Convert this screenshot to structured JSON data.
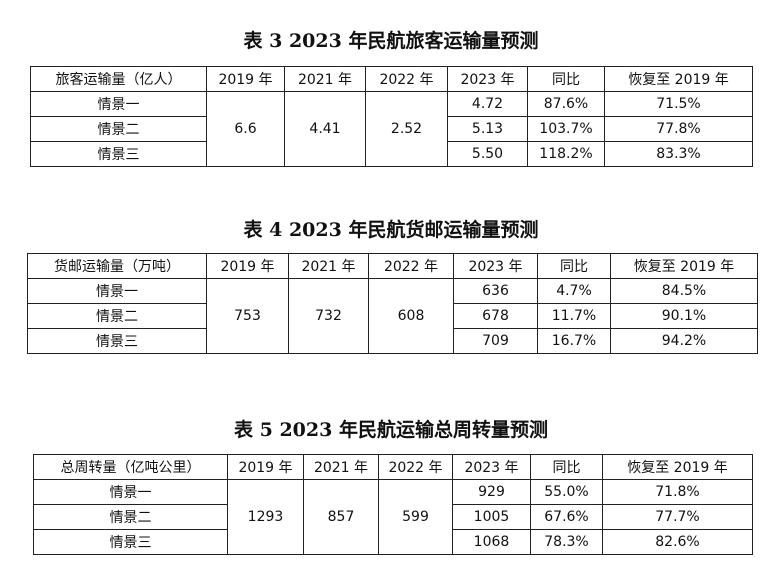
{
  "tables": [
    {
      "title": "表 3 2023 年民航旅客运输量预测",
      "columns": [
        "旅客运输量（亿人）",
        "2019 年",
        "2021 年",
        "2022 年",
        "2023 年",
        "同比",
        "恢复至 2019 年"
      ],
      "shared": [
        "6.6",
        "4.41",
        "2.52"
      ],
      "rows": [
        {
          "scenario": "情景一",
          "values": [
            "4.72",
            "87.6%",
            "71.5%"
          ]
        },
        {
          "scenario": "情景二",
          "values": [
            "5.13",
            "103.7%",
            "77.8%"
          ]
        },
        {
          "scenario": "情景三",
          "values": [
            "5.50",
            "118.2%",
            "83.3%"
          ]
        }
      ]
    },
    {
      "title": "表 4 2023 年民航货邮运输量预测",
      "columns": [
        "货邮运输量（万吨）",
        "2019 年",
        "2021 年",
        "2022 年",
        "2023 年",
        "同比",
        "恢复至 2019 年"
      ],
      "shared": [
        "753",
        "732",
        "608"
      ],
      "rows": [
        {
          "scenario": "情景一",
          "values": [
            "636",
            "4.7%",
            "84.5%"
          ]
        },
        {
          "scenario": "情景二",
          "values": [
            "678",
            "11.7%",
            "90.1%"
          ]
        },
        {
          "scenario": "情景三",
          "values": [
            "709",
            "16.7%",
            "94.2%"
          ]
        }
      ]
    },
    {
      "title": "表 5 2023 年民航运输总周转量预测",
      "columns": [
        "总周转量（亿吨公里）",
        "2019 年",
        "2021 年",
        "2022 年",
        "2023 年",
        "同比",
        "恢复至 2019 年"
      ],
      "shared": [
        "1293",
        "857",
        "599"
      ],
      "rows": [
        {
          "scenario": "情景一",
          "values": [
            "929",
            "55.0%",
            "71.8%"
          ]
        },
        {
          "scenario": "情景二",
          "values": [
            "1005",
            "67.6%",
            "77.7%"
          ]
        },
        {
          "scenario": "情景三",
          "values": [
            "1068",
            "78.3%",
            "82.6%"
          ]
        }
      ]
    }
  ]
}
